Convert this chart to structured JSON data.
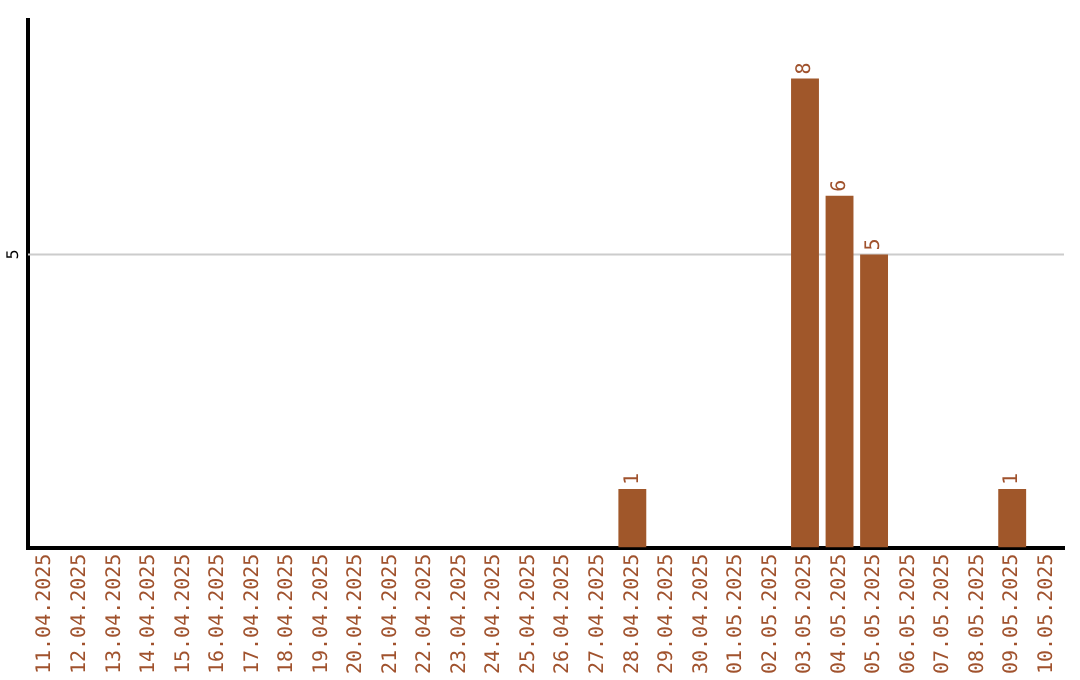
{
  "chart_data": {
    "type": "bar",
    "categories": [
      "11.04.2025",
      "12.04.2025",
      "13.04.2025",
      "14.04.2025",
      "15.04.2025",
      "16.04.2025",
      "17.04.2025",
      "18.04.2025",
      "19.04.2025",
      "20.04.2025",
      "21.04.2025",
      "22.04.2025",
      "23.04.2025",
      "24.04.2025",
      "25.04.2025",
      "26.04.2025",
      "27.04.2025",
      "28.04.2025",
      "29.04.2025",
      "30.04.2025",
      "01.05.2025",
      "02.05.2025",
      "03.05.2025",
      "04.05.2025",
      "05.05.2025",
      "06.05.2025",
      "07.05.2025",
      "08.05.2025",
      "09.05.2025",
      "10.05.2025"
    ],
    "values": [
      null,
      null,
      null,
      null,
      null,
      null,
      null,
      null,
      null,
      null,
      null,
      null,
      null,
      null,
      null,
      null,
      null,
      1,
      null,
      null,
      null,
      null,
      8,
      6,
      5,
      null,
      null,
      null,
      1,
      null
    ],
    "data_labels": true,
    "color": "#a0572a",
    "ref_lines": [
      {
        "axis": "y",
        "value": 5,
        "label": "5",
        "color": "#cccccc"
      }
    ],
    "legend": false
  }
}
